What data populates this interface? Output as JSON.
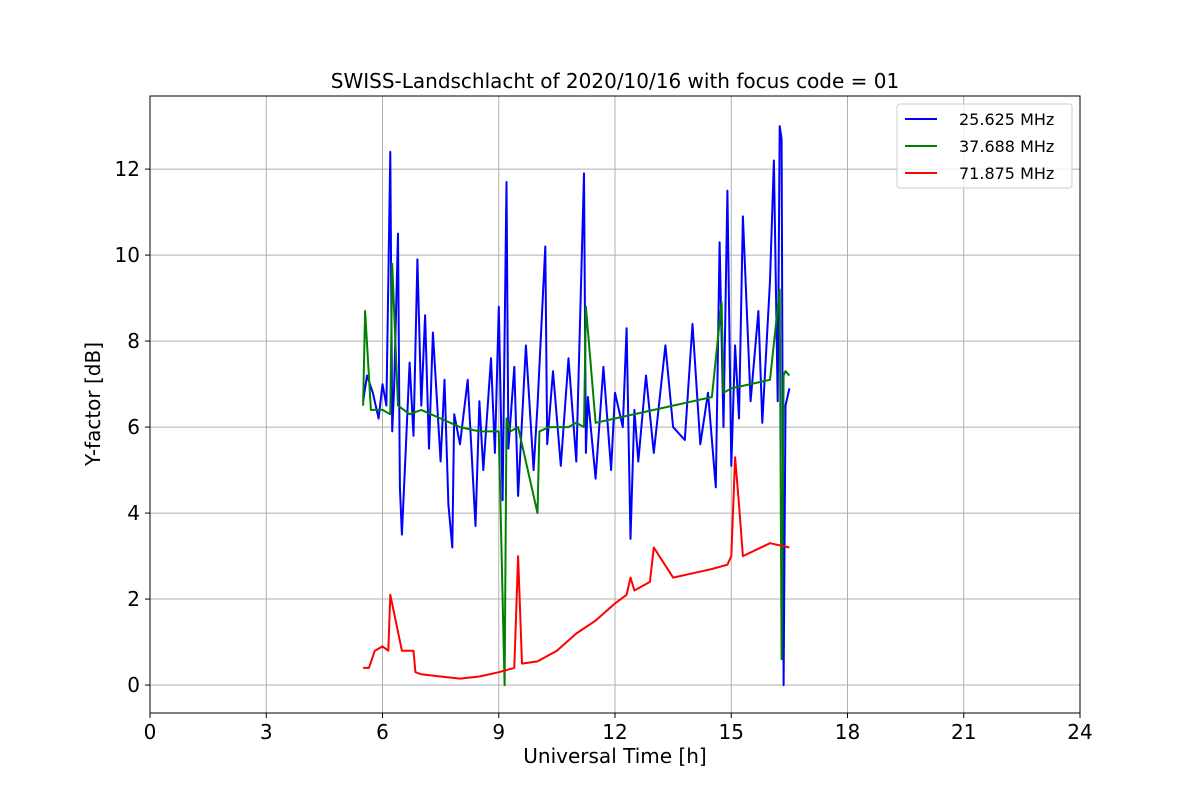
{
  "chart_data": {
    "type": "line",
    "title": "SWISS-Landschlacht of 2020/10/16 with focus code = 01",
    "xlabel": "Universal Time [h]",
    "ylabel": "Y-factor [dB]",
    "xlim": [
      0,
      24
    ],
    "ylim": [
      -0.65,
      13.7
    ],
    "xticks": [
      0,
      3,
      6,
      9,
      12,
      15,
      18,
      21,
      24
    ],
    "yticks": [
      0,
      2,
      4,
      6,
      8,
      10,
      12
    ],
    "grid": true,
    "legend_position": "top-right",
    "series": [
      {
        "name": "25.625 MHz",
        "color": "#0000ff",
        "x": [
          5.5,
          5.6,
          5.75,
          5.9,
          6.0,
          6.1,
          6.2,
          6.25,
          6.3,
          6.4,
          6.45,
          6.5,
          6.6,
          6.7,
          6.8,
          6.9,
          7.0,
          7.1,
          7.2,
          7.3,
          7.5,
          7.6,
          7.7,
          7.8,
          7.85,
          8.0,
          8.2,
          8.4,
          8.5,
          8.6,
          8.8,
          8.9,
          9.0,
          9.1,
          9.2,
          9.25,
          9.4,
          9.5,
          9.7,
          9.9,
          10.0,
          10.2,
          10.25,
          10.4,
          10.6,
          10.8,
          11.0,
          11.2,
          11.25,
          11.3,
          11.5,
          11.7,
          11.9,
          12.0,
          12.2,
          12.3,
          12.4,
          12.5,
          12.6,
          12.8,
          13.0,
          13.3,
          13.5,
          13.8,
          14.0,
          14.2,
          14.4,
          14.6,
          14.7,
          14.8,
          14.9,
          15.0,
          15.1,
          15.2,
          15.3,
          15.5,
          15.7,
          15.8,
          16.0,
          16.1,
          16.2,
          16.25,
          16.3,
          16.35,
          16.4,
          16.5
        ],
        "values": [
          6.6,
          7.2,
          6.8,
          6.2,
          7.0,
          6.5,
          12.4,
          5.9,
          6.9,
          10.5,
          4.6,
          3.5,
          5.5,
          7.5,
          5.8,
          9.9,
          6.5,
          8.6,
          5.5,
          8.2,
          5.2,
          7.1,
          4.2,
          3.2,
          6.3,
          5.6,
          7.1,
          3.7,
          6.6,
          5.0,
          7.6,
          5.4,
          8.8,
          4.3,
          11.7,
          5.5,
          7.4,
          4.4,
          7.9,
          5.0,
          6.5,
          10.2,
          5.6,
          7.3,
          5.1,
          7.6,
          5.2,
          11.9,
          5.4,
          6.7,
          4.8,
          7.4,
          5.0,
          6.8,
          6.0,
          8.3,
          3.4,
          6.4,
          5.2,
          7.2,
          5.4,
          7.9,
          6.0,
          5.7,
          8.4,
          5.6,
          6.8,
          4.6,
          10.3,
          6.0,
          11.5,
          5.1,
          7.9,
          6.2,
          10.9,
          6.6,
          8.7,
          6.1,
          9.4,
          12.2,
          6.6,
          13.0,
          12.7,
          0.0,
          6.5,
          6.9
        ]
      },
      {
        "name": "37.688 MHz",
        "color": "#008000",
        "x": [
          5.5,
          5.55,
          5.7,
          6.0,
          6.2,
          6.25,
          6.4,
          6.7,
          7.0,
          7.5,
          8.0,
          8.5,
          9.0,
          9.15,
          9.2,
          9.3,
          9.5,
          10.0,
          10.05,
          10.3,
          10.8,
          11.0,
          11.2,
          11.25,
          11.5,
          12.0,
          12.5,
          13.0,
          13.5,
          14.0,
          14.5,
          14.75,
          14.8,
          15.0,
          15.5,
          16.0,
          16.25,
          16.3,
          16.35,
          16.4,
          16.5
        ],
        "values": [
          6.5,
          8.7,
          6.4,
          6.4,
          6.3,
          9.8,
          6.5,
          6.3,
          6.4,
          6.2,
          6.0,
          5.9,
          5.9,
          0.0,
          6.2,
          5.9,
          6.0,
          4.0,
          5.9,
          6.0,
          6.0,
          6.1,
          6.0,
          8.8,
          6.1,
          6.2,
          6.3,
          6.4,
          6.5,
          6.6,
          6.7,
          8.9,
          6.8,
          6.9,
          7.0,
          7.1,
          9.2,
          0.6,
          7.2,
          7.3,
          7.2
        ]
      },
      {
        "name": "71.875 MHz",
        "color": "#ff0000",
        "x": [
          5.5,
          5.65,
          5.8,
          6.0,
          6.15,
          6.2,
          6.5,
          6.8,
          6.85,
          7.0,
          7.5,
          8.0,
          8.5,
          9.0,
          9.4,
          9.5,
          9.6,
          10.0,
          10.5,
          11.0,
          11.5,
          12.0,
          12.3,
          12.4,
          12.5,
          12.9,
          13.0,
          13.5,
          14.0,
          14.5,
          14.9,
          15.0,
          15.1,
          15.2,
          15.3,
          16.0,
          16.5
        ],
        "values": [
          0.4,
          0.4,
          0.8,
          0.9,
          0.8,
          2.1,
          0.8,
          0.8,
          0.3,
          0.25,
          0.2,
          0.15,
          0.2,
          0.3,
          0.4,
          3.0,
          0.5,
          0.55,
          0.8,
          1.2,
          1.5,
          1.9,
          2.1,
          2.5,
          2.2,
          2.4,
          3.2,
          2.5,
          2.6,
          2.7,
          2.8,
          3.0,
          5.3,
          4.2,
          3.0,
          3.3,
          3.2
        ]
      }
    ]
  }
}
